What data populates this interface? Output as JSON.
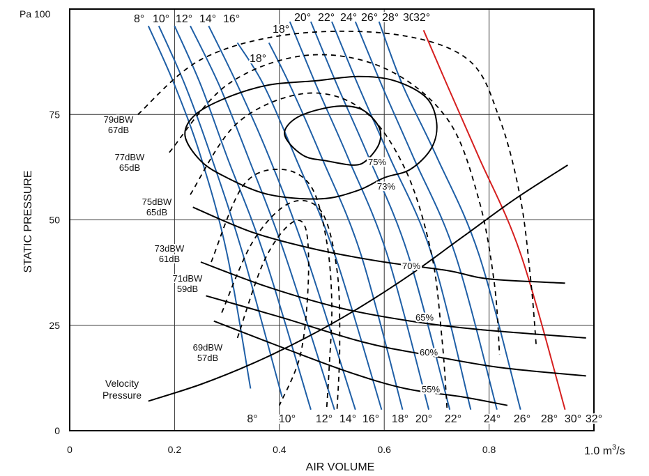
{
  "chart_data": {
    "type": "line",
    "xlabel": "AIR VOLUME",
    "ylabel": "STATIC PRESSURE",
    "x_unit_label": "1.0 m",
    "x_unit_sup": "3",
    "x_unit_suffix": "/s",
    "y_top_label": "Pa 100",
    "xlim": [
      0,
      1.0
    ],
    "ylim": [
      0,
      100
    ],
    "x_ticks": [
      {
        "value": 0,
        "label": "0"
      },
      {
        "value": 0.2,
        "label": "0.2"
      },
      {
        "value": 0.4,
        "label": "0.4"
      },
      {
        "value": 0.6,
        "label": "0.6"
      },
      {
        "value": 0.8,
        "label": "0.8"
      }
    ],
    "y_ticks": [
      {
        "value": 0,
        "label": "0"
      },
      {
        "value": 25,
        "label": "25"
      },
      {
        "value": 50,
        "label": "50"
      },
      {
        "value": 75,
        "label": "75"
      }
    ],
    "grid": true,
    "blade_angle_curves": {
      "color": "#1f5fa6",
      "highlight_color": "#d62020",
      "top_labels": [
        "8°",
        "10°",
        "12°",
        "14°",
        "16°",
        "18°",
        "20°",
        "22°",
        "24°",
        "26°",
        "28°",
        "30°",
        "32°"
      ],
      "bottom_labels": [
        "8°",
        "10°",
        "12°",
        "14°",
        "16°",
        "18°",
        "20°",
        "22°",
        "24°",
        "26°",
        "28°",
        "30°",
        "32°"
      ],
      "series": [
        {
          "name": "8°",
          "points": [
            [
              0.15,
              96
            ],
            [
              0.2,
              82
            ],
            [
              0.25,
              65
            ],
            [
              0.3,
              42
            ],
            [
              0.345,
              10
            ]
          ]
        },
        {
          "name": "10°",
          "points": [
            [
              0.17,
              96
            ],
            [
              0.22,
              82
            ],
            [
              0.27,
              65
            ],
            [
              0.33,
              42
            ],
            [
              0.405,
              8
            ]
          ]
        },
        {
          "name": "12°",
          "points": [
            [
              0.2,
              96
            ],
            [
              0.25,
              82
            ],
            [
              0.3,
              65
            ],
            [
              0.37,
              42
            ],
            [
              0.46,
              5
            ]
          ]
        },
        {
          "name": "14°",
          "points": [
            [
              0.23,
              96
            ],
            [
              0.285,
              82
            ],
            [
              0.34,
              65
            ],
            [
              0.41,
              42
            ],
            [
              0.505,
              5
            ]
          ]
        },
        {
          "name": "16°",
          "points": [
            [
              0.265,
              96
            ],
            [
              0.32,
              82
            ],
            [
              0.38,
              65
            ],
            [
              0.45,
              42
            ],
            [
              0.545,
              5
            ]
          ]
        },
        {
          "name": "18°",
          "points": [
            [
              0.32,
              92
            ],
            [
              0.37,
              82
            ],
            [
              0.43,
              65
            ],
            [
              0.505,
              42
            ],
            [
              0.595,
              5
            ]
          ]
        },
        {
          "name": "20°",
          "points": [
            [
              0.38,
              92
            ],
            [
              0.42,
              82
            ],
            [
              0.48,
              65
            ],
            [
              0.555,
              42
            ],
            [
              0.635,
              5
            ]
          ]
        },
        {
          "name": "22°",
          "points": [
            [
              0.42,
              97
            ],
            [
              0.47,
              82
            ],
            [
              0.53,
              65
            ],
            [
              0.605,
              42
            ],
            [
              0.685,
              5
            ]
          ]
        },
        {
          "name": "24°",
          "points": [
            [
              0.46,
              97
            ],
            [
              0.51,
              82
            ],
            [
              0.57,
              65
            ],
            [
              0.645,
              42
            ],
            [
              0.725,
              5
            ]
          ]
        },
        {
          "name": "26°",
          "points": [
            [
              0.5,
              97
            ],
            [
              0.55,
              82
            ],
            [
              0.61,
              65
            ],
            [
              0.69,
              42
            ],
            [
              0.765,
              5
            ]
          ]
        },
        {
          "name": "28°",
          "points": [
            [
              0.545,
              97
            ],
            [
              0.595,
              82
            ],
            [
              0.655,
              65
            ],
            [
              0.735,
              42
            ],
            [
              0.815,
              5
            ]
          ]
        },
        {
          "name": "30°",
          "points": [
            [
              0.59,
              97
            ],
            [
              0.635,
              82
            ],
            [
              0.7,
              65
            ],
            [
              0.78,
              42
            ],
            [
              0.86,
              5
            ]
          ]
        },
        {
          "name": "32°",
          "points": [
            [
              0.675,
              95
            ],
            [
              0.72,
              82
            ],
            [
              0.78,
              65
            ],
            [
              0.86,
              42
            ],
            [
              0.945,
              5
            ]
          ],
          "highlight": true
        }
      ]
    },
    "sound_curves": {
      "labels": [
        {
          "line1": "79dBW",
          "line2": "67dB"
        },
        {
          "line1": "77dBW",
          "line2": "65dB"
        },
        {
          "line1": "75dBW",
          "line2": "65dB"
        },
        {
          "line1": "73dBW",
          "line2": "61dB"
        },
        {
          "line1": "71dBW",
          "line2": "59dB"
        },
        {
          "line1": "69dBW",
          "line2": "57dB"
        }
      ],
      "series": [
        {
          "name": "79dBW",
          "points": [
            [
              0.13,
              75
            ],
            [
              0.25,
              88
            ],
            [
              0.42,
              94
            ],
            [
              0.62,
              94
            ],
            [
              0.76,
              88
            ],
            [
              0.82,
              74
            ],
            [
              0.86,
              55
            ],
            [
              0.88,
              35
            ],
            [
              0.89,
              20
            ]
          ]
        },
        {
          "name": "77dBW",
          "points": [
            [
              0.19,
              66
            ],
            [
              0.3,
              82
            ],
            [
              0.45,
              89
            ],
            [
              0.6,
              86
            ],
            [
              0.72,
              74
            ],
            [
              0.78,
              55
            ],
            [
              0.81,
              35
            ],
            [
              0.82,
              18
            ]
          ]
        },
        {
          "name": "75dBW",
          "points": [
            [
              0.23,
              56
            ],
            [
              0.32,
              73
            ],
            [
              0.45,
              80
            ],
            [
              0.56,
              76
            ],
            [
              0.64,
              62
            ],
            [
              0.69,
              42
            ],
            [
              0.71,
              22
            ],
            [
              0.72,
              5
            ]
          ]
        },
        {
          "name": "73dBW",
          "points": [
            [
              0.27,
              40
            ],
            [
              0.33,
              58
            ],
            [
              0.4,
              62
            ],
            [
              0.46,
              58
            ],
            [
              0.49,
              45
            ],
            [
              0.5,
              30
            ],
            [
              0.495,
              15
            ],
            [
              0.49,
              5
            ]
          ]
        },
        {
          "name": "71dBW",
          "points": [
            [
              0.29,
              28
            ],
            [
              0.35,
              45
            ],
            [
              0.42,
              54
            ],
            [
              0.48,
              52
            ],
            [
              0.51,
              38
            ],
            [
              0.515,
              20
            ],
            [
              0.51,
              5
            ]
          ]
        },
        {
          "name": "69dBW",
          "points": [
            [
              0.32,
              22
            ],
            [
              0.37,
              40
            ],
            [
              0.42,
              49
            ],
            [
              0.45,
              48
            ],
            [
              0.455,
              35
            ],
            [
              0.44,
              18
            ],
            [
              0.4,
              6
            ]
          ]
        }
      ]
    },
    "efficiency_curves": {
      "labels": [
        "75%",
        "73%",
        "70%",
        "65%",
        "60%",
        "55%"
      ],
      "series": [
        {
          "name": "75%",
          "closed": true,
          "points": [
            [
              0.54,
              63
            ],
            [
              0.49,
              64
            ],
            [
              0.45,
              65
            ],
            [
              0.42,
              68
            ],
            [
              0.41,
              71
            ],
            [
              0.43,
              74
            ],
            [
              0.47,
              76
            ],
            [
              0.52,
              77
            ],
            [
              0.56,
              76
            ],
            [
              0.59,
              72
            ],
            [
              0.59,
              68
            ],
            [
              0.565,
              64
            ]
          ]
        },
        {
          "name": "73%",
          "closed": true,
          "points": [
            [
              0.6,
              60
            ],
            [
              0.55,
              57
            ],
            [
              0.48,
              55
            ],
            [
              0.38,
              56
            ],
            [
              0.3,
              60
            ],
            [
              0.25,
              64
            ],
            [
              0.22,
              70
            ],
            [
              0.24,
              75
            ],
            [
              0.3,
              79
            ],
            [
              0.38,
              82
            ],
            [
              0.47,
              83
            ],
            [
              0.55,
              84
            ],
            [
              0.62,
              83
            ],
            [
              0.68,
              79
            ],
            [
              0.7,
              73
            ],
            [
              0.69,
              67
            ],
            [
              0.65,
              62
            ]
          ]
        },
        {
          "name": "70%",
          "points": [
            [
              0.235,
              53
            ],
            [
              0.35,
              47
            ],
            [
              0.47,
              43
            ],
            [
              0.6,
              40
            ],
            [
              0.72,
              38
            ],
            [
              0.8,
              36
            ],
            [
              0.945,
              35
            ]
          ]
        },
        {
          "name": "65%",
          "points": [
            [
              0.25,
              40
            ],
            [
              0.38,
              34
            ],
            [
              0.52,
              29
            ],
            [
              0.65,
              26
            ],
            [
              0.78,
              24
            ],
            [
              0.985,
              22
            ]
          ]
        },
        {
          "name": "60%",
          "points": [
            [
              0.26,
              32
            ],
            [
              0.4,
              27
            ],
            [
              0.56,
              21
            ],
            [
              0.68,
              18
            ],
            [
              0.82,
              15
            ],
            [
              0.985,
              13
            ]
          ]
        },
        {
          "name": "55%",
          "points": [
            [
              0.275,
              26
            ],
            [
              0.4,
              20
            ],
            [
              0.53,
              14
            ],
            [
              0.64,
              10
            ],
            [
              0.75,
              8
            ],
            [
              0.835,
              6
            ]
          ]
        }
      ]
    },
    "velocity_pressure": {
      "name_line1": "Velocity",
      "name_line2": "Pressure",
      "points": [
        [
          0.15,
          7
        ],
        [
          0.25,
          11
        ],
        [
          0.35,
          16
        ],
        [
          0.45,
          22
        ],
        [
          0.55,
          29
        ],
        [
          0.65,
          37
        ],
        [
          0.75,
          46
        ],
        [
          0.85,
          55
        ],
        [
          0.95,
          63
        ]
      ]
    }
  }
}
